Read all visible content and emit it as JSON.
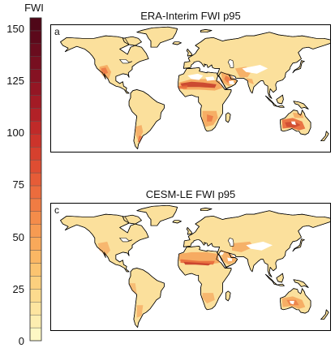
{
  "colorbar": {
    "title": "FWI",
    "ticks": [
      {
        "value": 150,
        "label": "150"
      },
      {
        "value": 125,
        "label": "125"
      },
      {
        "value": 100,
        "label": "100"
      },
      {
        "value": 75,
        "label": "75"
      },
      {
        "value": 50,
        "label": "50"
      },
      {
        "value": 25,
        "label": "25"
      },
      {
        "value": 0,
        "label": "0"
      }
    ],
    "min": 0,
    "max": 155,
    "colors": [
      "#fef8c4",
      "#fdeeb0",
      "#fde5a0",
      "#fcdb8e",
      "#fcd07e",
      "#fbc470",
      "#fab764",
      "#f9a95a",
      "#f79b52",
      "#f48c4a",
      "#f07c43",
      "#ec6c3d",
      "#e65c37",
      "#df4d32",
      "#d6402e",
      "#cc342b",
      "#c02a29",
      "#b22127",
      "#a31b25",
      "#941624",
      "#851222",
      "#770f20",
      "#6a0c1e",
      "#5c091b",
      "#4f0718"
    ]
  },
  "maps": [
    {
      "letter": "a",
      "title": "ERA-Interim FWI p95"
    },
    {
      "letter": "c",
      "title": "CESM-LE FWI p95"
    }
  ],
  "colors": {
    "land": "#fbe09c",
    "ocean": "#ffffff",
    "coast": "#000000",
    "hot1": "#f5a55c",
    "hot2": "#e8693c",
    "hot3": "#c8402c"
  }
}
